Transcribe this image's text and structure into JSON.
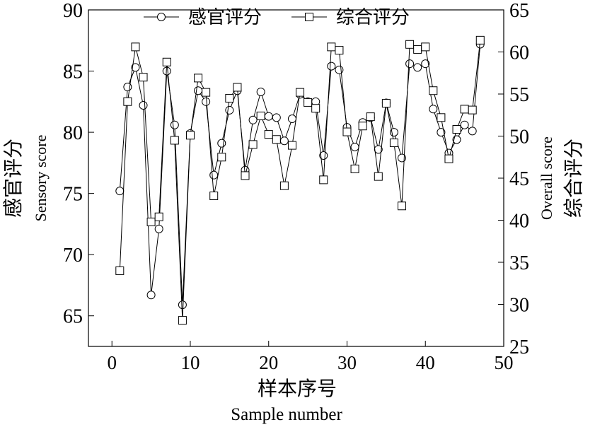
{
  "chart_data": {
    "type": "line",
    "title": "",
    "xlabel": "样本序号",
    "xlabel_en": "Sample number",
    "ylabel_left": "感官评分",
    "ylabel_left_en": "Sensory score",
    "ylabel_right": "综合评分",
    "ylabel_right_en": "Overall score",
    "xlim": [
      -3,
      50
    ],
    "ylim_left": [
      62.5,
      90
    ],
    "ylim_right": [
      25,
      65
    ],
    "xticks": [
      0,
      10,
      20,
      30,
      40,
      50
    ],
    "yticks_left": [
      65,
      70,
      75,
      80,
      85,
      90
    ],
    "yticks_right": [
      25,
      30,
      35,
      40,
      45,
      50,
      55,
      60,
      65
    ],
    "grid": false,
    "legend_position": "top",
    "series": [
      {
        "name": "感官评分",
        "axis": "left",
        "marker": "circle",
        "x": [
          1,
          2,
          3,
          4,
          5,
          6,
          7,
          8,
          9,
          10,
          11,
          12,
          13,
          14,
          15,
          16,
          17,
          18,
          19,
          20,
          21,
          22,
          23,
          24,
          25,
          26,
          27,
          28,
          29,
          30,
          31,
          32,
          33,
          34,
          35,
          36,
          37,
          38,
          39,
          40,
          41,
          42,
          43,
          44,
          45,
          46,
          47
        ],
        "values": [
          75.2,
          83.7,
          85.3,
          82.2,
          66.7,
          72.1,
          85.0,
          80.6,
          65.9,
          79.9,
          83.4,
          82.5,
          76.5,
          79.1,
          81.8,
          83.4,
          76.9,
          81.0,
          83.3,
          81.3,
          81.2,
          79.3,
          81.1,
          83.1,
          82.5,
          82.5,
          78.1,
          85.4,
          85.1,
          80.4,
          78.8,
          80.8,
          81.2,
          78.6,
          82.4,
          80.0,
          77.9,
          85.6,
          85.3,
          85.6,
          81.9,
          80.0,
          78.3,
          79.4,
          80.6,
          80.1,
          87.2
        ]
      },
      {
        "name": "综合评分",
        "axis": "right",
        "marker": "square",
        "x": [
          1,
          2,
          3,
          4,
          5,
          6,
          7,
          8,
          9,
          10,
          11,
          12,
          13,
          14,
          15,
          16,
          17,
          18,
          19,
          20,
          21,
          22,
          23,
          24,
          25,
          26,
          27,
          28,
          29,
          30,
          31,
          32,
          33,
          34,
          35,
          36,
          37,
          38,
          39,
          40,
          41,
          42,
          43,
          44,
          45,
          46,
          47
        ],
        "values": [
          34.0,
          54.1,
          60.6,
          57.0,
          39.8,
          40.4,
          58.8,
          49.5,
          28.1,
          50.1,
          56.9,
          55.2,
          42.9,
          47.5,
          54.5,
          55.8,
          45.3,
          49.0,
          52.4,
          50.2,
          49.6,
          44.1,
          48.9,
          55.2,
          54.0,
          53.3,
          44.8,
          60.6,
          60.2,
          50.5,
          46.1,
          51.2,
          52.3,
          45.2,
          53.9,
          49.2,
          41.7,
          60.9,
          60.3,
          60.6,
          55.4,
          52.2,
          47.3,
          50.8,
          53.2,
          53.1,
          61.4
        ]
      }
    ]
  }
}
